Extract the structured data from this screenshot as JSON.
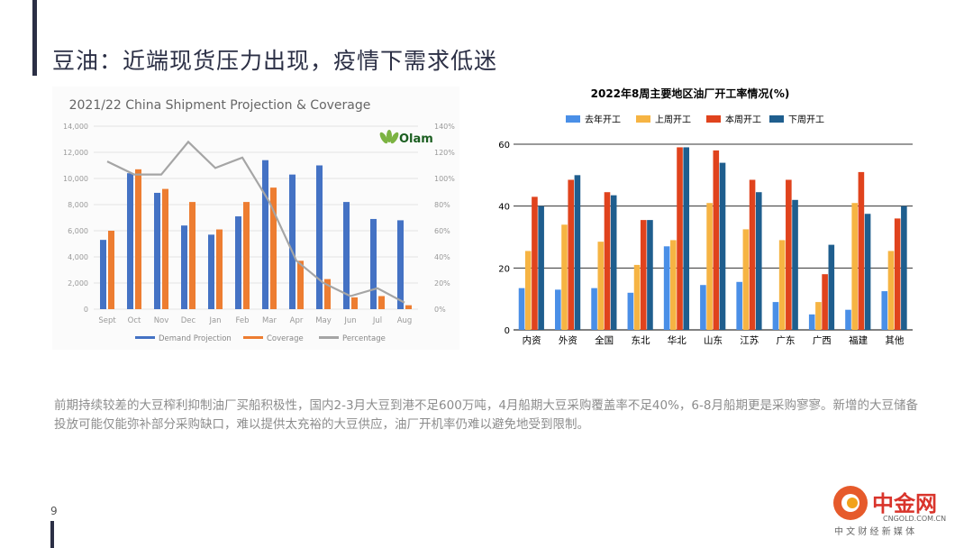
{
  "slide": {
    "title": "豆油：近端现货压力出现，疫情下需求低迷",
    "page_number": "9",
    "body_text": "前期持续较差的大豆榨利抑制油厂买船积极性，国内2-3月大豆到港不足600万吨，4月船期大豆采购覆盖率不足40%，6-8月船期更是采购寥寥。新增的大豆储备投放可能仅能弥补部分采购缺口，难以提供太充裕的大豆供应，油厂开机率仍难以避免地受到限制。"
  },
  "logo": {
    "name_cn": "中金网",
    "site": "CNGOLD.COM.CN",
    "tagline": "中 文 财 经 新 媒 体",
    "brand_color": "#d9342b"
  },
  "chart_data": [
    {
      "type": "bar",
      "title": "2021/22 China Shipment  Projection & Coverage",
      "brand": "Olam",
      "categories": [
        "Sept",
        "Oct",
        "Nov",
        "Dec",
        "Jan",
        "Feb",
        "Mar",
        "Apr",
        "May",
        "Jun",
        "Jul",
        "Aug"
      ],
      "left_axis": {
        "ylim": [
          0,
          14000
        ],
        "ticks": [
          "0",
          "2,000",
          "4,000",
          "6,000",
          "8,000",
          "10,000",
          "12,000",
          "14,000"
        ]
      },
      "right_axis": {
        "ylim": [
          0,
          140
        ],
        "ticks": [
          "0%",
          "20%",
          "40%",
          "60%",
          "80%",
          "100%",
          "120%",
          "140%"
        ]
      },
      "series": [
        {
          "name": "Demand Projection",
          "kind": "bar",
          "axis": "left",
          "color": "#4472c4",
          "values": [
            5300,
            10400,
            8900,
            6400,
            5700,
            7100,
            11400,
            10300,
            11000,
            8200,
            6900,
            6800
          ]
        },
        {
          "name": "Coverage",
          "kind": "bar",
          "axis": "left",
          "color": "#ed7d31",
          "values": [
            6000,
            10700,
            9200,
            8200,
            6100,
            8200,
            9300,
            3700,
            2300,
            900,
            1000,
            300
          ]
        },
        {
          "name": "Percentage",
          "kind": "line",
          "axis": "right",
          "color": "#a5a5a5",
          "values": [
            113,
            103,
            103,
            128,
            108,
            116,
            82,
            37,
            20,
            10,
            16,
            5
          ]
        }
      ],
      "legend_position": "bottom",
      "grid": true
    },
    {
      "type": "bar",
      "title": "2022年8周主要地区油厂开工率情况(%)",
      "categories": [
        "内资",
        "外资",
        "全国",
        "东北",
        "华北",
        "山东",
        "江苏",
        "广东",
        "广西",
        "福建",
        "其他"
      ],
      "ylim": [
        0,
        60
      ],
      "y_ticks": [
        "0",
        "20",
        "40",
        "60"
      ],
      "series": [
        {
          "name": "去年开工",
          "color": "#4a8fe7",
          "values": [
            13.5,
            13,
            13.5,
            12,
            27,
            14.5,
            15.5,
            9,
            5,
            6.5,
            12.5
          ]
        },
        {
          "name": "上周开工",
          "color": "#f6b443",
          "values": [
            25.5,
            34,
            28.5,
            21,
            29,
            41,
            32.5,
            29,
            9,
            41,
            25.5
          ]
        },
        {
          "name": "本周开工",
          "color": "#e0431d",
          "values": [
            43,
            48.5,
            44.5,
            35.5,
            59,
            58,
            48.5,
            48.5,
            18,
            51,
            36
          ]
        },
        {
          "name": "下周开工",
          "color": "#1f5e8e",
          "values": [
            40,
            50,
            43.5,
            35.5,
            59,
            54,
            44.5,
            42,
            27.5,
            37.5,
            40
          ]
        }
      ],
      "legend_position": "top",
      "grid": true
    }
  ]
}
